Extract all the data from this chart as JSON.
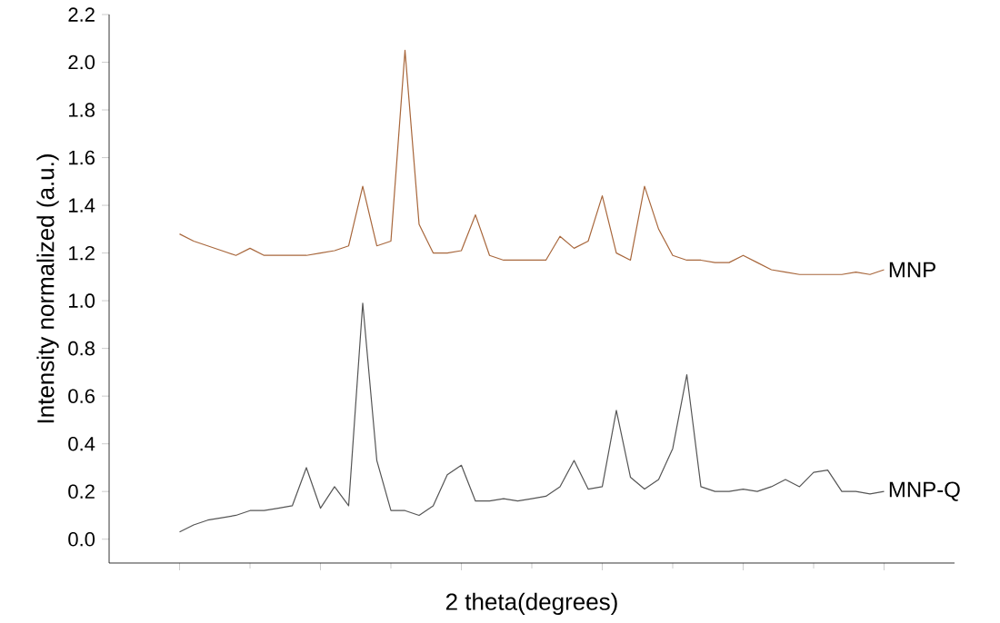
{
  "chart_data": {
    "type": "line",
    "xlabel": "2 theta(degrees)",
    "ylabel": "Intensity normalized (a.u.)",
    "categories": [
      null,
      null,
      null,
      null,
      null,
      null,
      null,
      null,
      null,
      null,
      null,
      null,
      null,
      null,
      null,
      null,
      null,
      null,
      null,
      null,
      null,
      null,
      null,
      null,
      null,
      null,
      null,
      null,
      null,
      null,
      null,
      null,
      null,
      null,
      null,
      null,
      null,
      null,
      null,
      null,
      null,
      null,
      null,
      null,
      null,
      null,
      null,
      null,
      null,
      null,
      null
    ],
    "series": [
      {
        "name": "MNP",
        "color": "#a8673c",
        "values": [
          1.28,
          1.25,
          1.23,
          1.21,
          1.19,
          1.22,
          1.19,
          1.19,
          1.19,
          1.19,
          1.2,
          1.21,
          1.23,
          1.48,
          1.23,
          1.25,
          2.05,
          1.32,
          1.2,
          1.2,
          1.21,
          1.36,
          1.19,
          1.17,
          1.17,
          1.17,
          1.17,
          1.27,
          1.22,
          1.25,
          1.44,
          1.2,
          1.17,
          1.48,
          1.3,
          1.19,
          1.17,
          1.17,
          1.16,
          1.16,
          1.19,
          1.16,
          1.13,
          1.12,
          1.11,
          1.11,
          1.11,
          1.11,
          1.12,
          1.11,
          1.13
        ]
      },
      {
        "name": "MNP-Q",
        "color": "#555555",
        "values": [
          0.03,
          0.06,
          0.08,
          0.09,
          0.1,
          0.12,
          0.12,
          0.13,
          0.14,
          0.3,
          0.13,
          0.22,
          0.14,
          0.99,
          0.33,
          0.12,
          0.12,
          0.1,
          0.14,
          0.27,
          0.31,
          0.16,
          0.16,
          0.17,
          0.16,
          0.17,
          0.18,
          0.22,
          0.33,
          0.21,
          0.22,
          0.54,
          0.26,
          0.21,
          0.25,
          0.38,
          0.69,
          0.22,
          0.2,
          0.2,
          0.21,
          0.2,
          0.22,
          0.25,
          0.22,
          0.28,
          0.29,
          0.2,
          0.2,
          0.19,
          0.2
        ]
      }
    ],
    "ylim": [
      -0.1,
      2.2
    ],
    "yticks": [
      {
        "value": 0,
        "label": "0.0"
      },
      0.2,
      0.4,
      0.6,
      0.8,
      {
        "value": 1,
        "label": "1.0"
      },
      1.2,
      1.4,
      1.6,
      1.8,
      {
        "value": 2,
        "label": "2.0"
      },
      2.2
    ],
    "legend": false,
    "grid": false,
    "marker": "none",
    "line_style": "solid"
  }
}
